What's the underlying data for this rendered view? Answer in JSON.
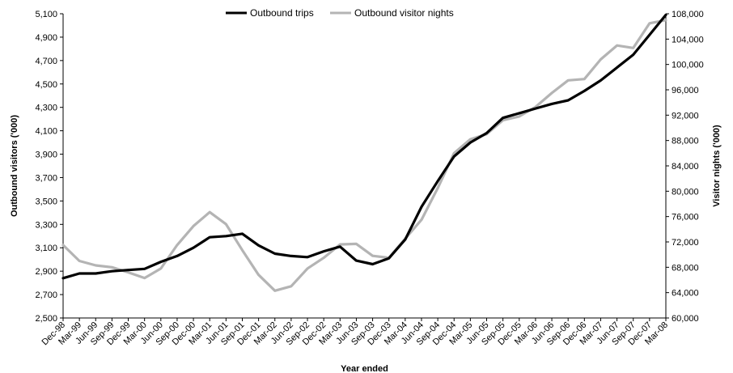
{
  "chart_data": {
    "type": "line",
    "title": "",
    "xlabel": "Year ended",
    "ylabel_left": "Outbound visitors ('000)",
    "ylabel_right": "Visitor nights ('000)",
    "ylim_left": [
      2500,
      5100
    ],
    "ylim_right": [
      60000,
      108000
    ],
    "yticks_left": [
      "2,500",
      "2,700",
      "2,900",
      "3,100",
      "3,300",
      "3,500",
      "3,700",
      "3,900",
      "4,100",
      "4,300",
      "4,500",
      "4,700",
      "4,900",
      "5,100"
    ],
    "yticks_right": [
      "60,000",
      "64,000",
      "68,000",
      "72,000",
      "76,000",
      "80,000",
      "84,000",
      "88,000",
      "92,000",
      "96,000",
      "100,000",
      "104,000",
      "108,000"
    ],
    "grid": false,
    "legend_position": "top",
    "categories": [
      "Dec-98",
      "Mar-99",
      "Jun-99",
      "Sep-99",
      "Dec-99",
      "Mar-00",
      "Jun-00",
      "Sep-00",
      "Dec-00",
      "Mar-01",
      "Jun-01",
      "Sep-01",
      "Dec-01",
      "Mar-02",
      "Jun-02",
      "Sep-02",
      "Dec-02",
      "Mar-03",
      "Jun-03",
      "Sep-03",
      "Dec-03",
      "Mar-04",
      "Jun-04",
      "Sep-04",
      "Dec-04",
      "Mar-05",
      "Jun-05",
      "Sep-05",
      "Dec-05",
      "Mar-06",
      "Jun-06",
      "Sep-06",
      "Dec-06",
      "Mar-07",
      "Jun-07",
      "Sep-07",
      "Dec-07",
      "Mar-08"
    ],
    "series": [
      {
        "name": "Outbound trips",
        "axis": "left",
        "color": "#000000",
        "values": [
          2840,
          2880,
          2880,
          2900,
          2910,
          2920,
          2980,
          3030,
          3100,
          3190,
          3200,
          3220,
          3120,
          3050,
          3030,
          3020,
          3070,
          3110,
          2990,
          2960,
          3010,
          3170,
          3450,
          3670,
          3880,
          4000,
          4080,
          4210,
          4250,
          4290,
          4330,
          4360,
          4440,
          4530,
          4640,
          4750,
          4920,
          5090
        ]
      },
      {
        "name": "Outbound visitor nights",
        "axis": "right",
        "color": "#b4b4b4",
        "values": [
          71500,
          69000,
          68300,
          68000,
          67200,
          66300,
          67800,
          71500,
          74500,
          76700,
          74800,
          70700,
          66800,
          64300,
          65000,
          67800,
          69500,
          71600,
          71700,
          69800,
          69500,
          72500,
          75500,
          80500,
          86000,
          88200,
          89000,
          91200,
          91800,
          93300,
          95500,
          97500,
          97700,
          100800,
          103000,
          102600,
          106500,
          107000
        ]
      }
    ]
  }
}
